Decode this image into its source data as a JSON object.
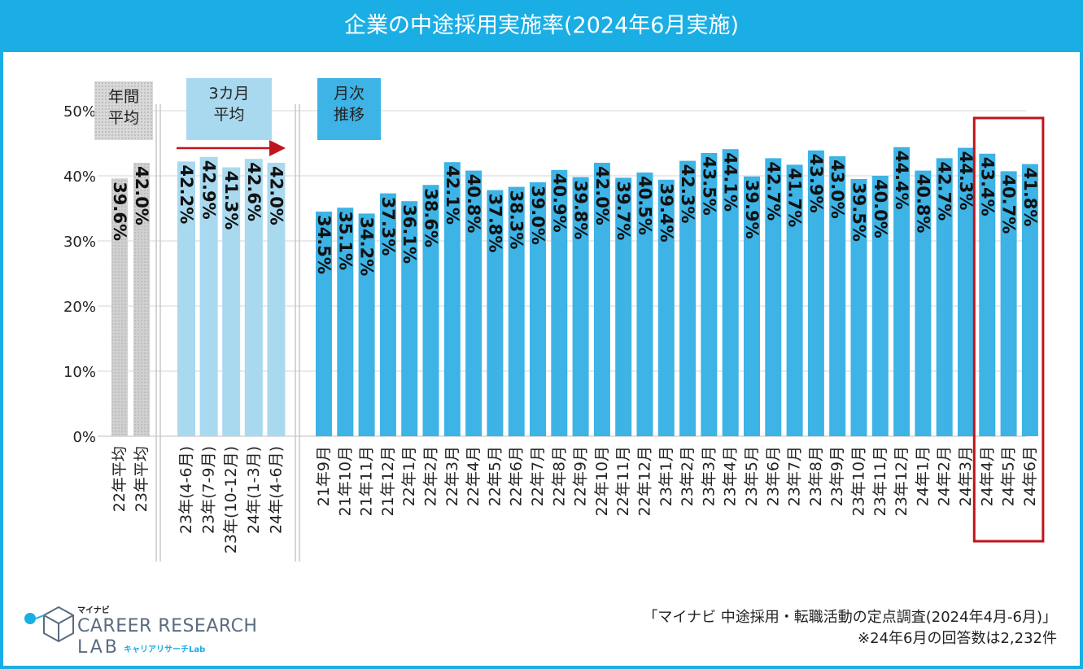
{
  "title": "企業の中途採用実施率(2024年6月実施)",
  "labels": {
    "annual": [
      "年間",
      "平均"
    ],
    "three_month": [
      "3カ月",
      "平均"
    ],
    "monthly": [
      "月次",
      "推移"
    ]
  },
  "colors": {
    "brand": "#1aaee5",
    "annual_bar": "#d0d0d0",
    "three_month_bar": "#a9d9ef",
    "monthly_bar": "#3db3e6",
    "highlight": "#c0141c"
  },
  "chart_data": {
    "type": "bar",
    "title": "企業の中途採用実施率(2024年6月実施)",
    "ylim": [
      0,
      50
    ],
    "yticks": [
      "0%",
      "10%",
      "20%",
      "30%",
      "40%",
      "50%"
    ],
    "grid": true,
    "groups": [
      {
        "name": "年間平均",
        "categories": [
          "22年平均",
          "23年平均"
        ],
        "values": [
          39.6,
          42.0
        ],
        "labels": [
          "39.6%",
          "42.0%"
        ]
      },
      {
        "name": "3カ月平均",
        "categories": [
          "23年(4-6月)",
          "23年(7-9月)",
          "23年(10-12月)",
          "24年(1-3月)",
          "24年(4-6月)"
        ],
        "values": [
          42.2,
          42.9,
          41.3,
          42.6,
          42.0
        ],
        "labels": [
          "42.2%",
          "42.9%",
          "41.3%",
          "42.6%",
          "42.0%"
        ]
      },
      {
        "name": "月次推移",
        "categories": [
          "21年9月",
          "21年10月",
          "21年11月",
          "21年12月",
          "22年1月",
          "22年2月",
          "22年3月",
          "22年4月",
          "22年5月",
          "22年6月",
          "22年7月",
          "22年8月",
          "22年9月",
          "22年10月",
          "22年11月",
          "22年12月",
          "23年1月",
          "23年2月",
          "23年3月",
          "23年4月",
          "23年5月",
          "23年6月",
          "23年7月",
          "23年8月",
          "23年9月",
          "23年10月",
          "23年11月",
          "23年12月",
          "24年1月",
          "24年2月",
          "24年3月",
          "24年4月",
          "24年5月",
          "24年6月"
        ],
        "values": [
          34.5,
          35.1,
          34.2,
          37.3,
          36.1,
          38.6,
          42.1,
          40.8,
          37.8,
          38.3,
          39.0,
          40.9,
          39.8,
          42.0,
          39.7,
          40.5,
          39.4,
          42.3,
          43.5,
          44.1,
          39.9,
          42.7,
          41.7,
          43.9,
          43.0,
          39.5,
          40.0,
          44.4,
          40.8,
          42.7,
          44.3,
          43.4,
          40.7,
          41.8
        ],
        "labels": [
          "34.5%",
          "35.1%",
          "34.2%",
          "37.3%",
          "36.1%",
          "38.6%",
          "42.1%",
          "40.8%",
          "37.8%",
          "38.3%",
          "39.0%",
          "40.9%",
          "39.8%",
          "42.0%",
          "39.7%",
          "40.5%",
          "39.4%",
          "42.3%",
          "43.5%",
          "44.1%",
          "39.9%",
          "42.7%",
          "41.7%",
          "43.9%",
          "43.0%",
          "39.5%",
          "40.0%",
          "44.4%",
          "40.8%",
          "42.7%",
          "44.3%",
          "43.4%",
          "40.7%",
          "41.8%"
        ]
      }
    ],
    "highlight_categories": [
      "24年4月",
      "24年5月",
      "24年6月"
    ]
  },
  "logo": {
    "small": "マイナビ",
    "main": "CAREER RESEARCH",
    "lab": "LAB",
    "sub": "キャリアリサーチLab"
  },
  "source": {
    "line1": "「マイナビ 中途採用・転職活動の定点調査(2024年4月-6月)」",
    "line2": "※24年6月の回答数は2,232件"
  }
}
